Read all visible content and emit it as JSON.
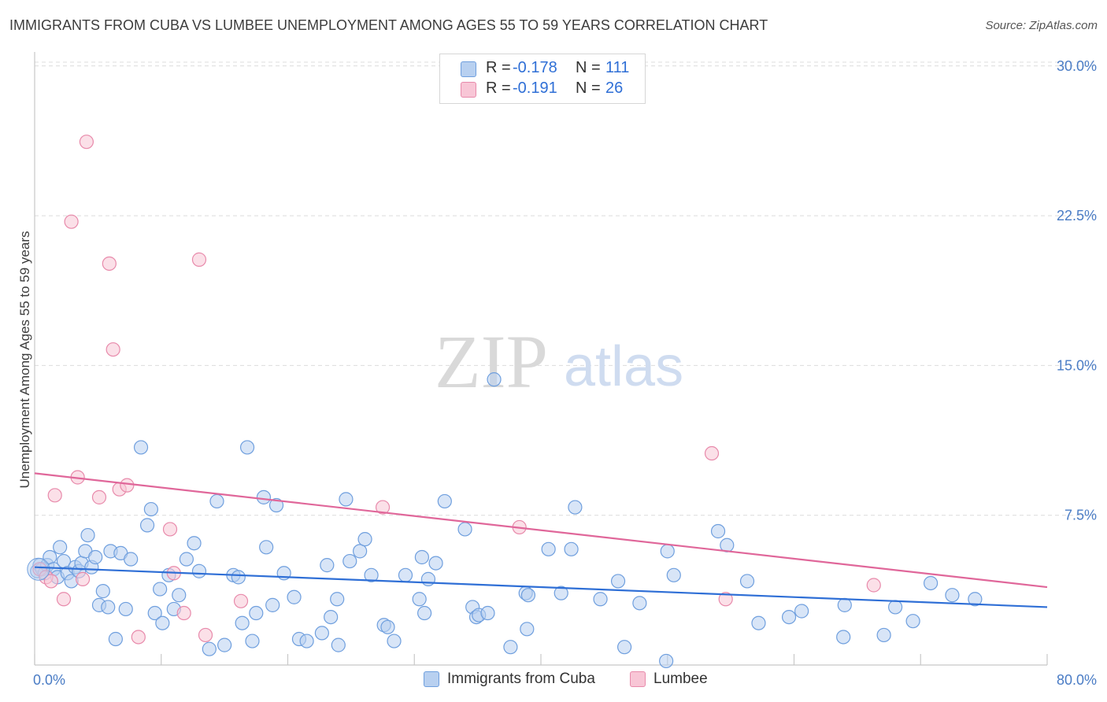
{
  "title": "IMMIGRANTS FROM CUBA VS LUMBEE UNEMPLOYMENT AMONG AGES 55 TO 59 YEARS CORRELATION CHART",
  "source": "Source: ZipAtlas.com",
  "watermark": {
    "zip": "ZIP",
    "atlas": "atlas"
  },
  "legend": {
    "rows": [
      {
        "r_label": "R =",
        "r_value": "-0.178",
        "n_label": "N =",
        "n_value": "111"
      },
      {
        "r_label": "R =",
        "r_value": "-0.191",
        "n_label": "N =",
        "n_value": "26"
      }
    ]
  },
  "bottom_legend": {
    "cuba": "Immigrants from Cuba",
    "lumbee": "Lumbee"
  },
  "colors": {
    "cuba_fill": "#b8d0f0",
    "cuba_stroke": "#6f9fde",
    "cuba_line": "#2f6fd6",
    "lumbee_fill": "#f8c6d6",
    "lumbee_stroke": "#e88aab",
    "lumbee_line": "#e0679a",
    "tick_text": "#4a7cc5",
    "grid": "#dcdcdc"
  },
  "chart_data": {
    "type": "scatter",
    "title": "IMMIGRANTS FROM CUBA VS LUMBEE UNEMPLOYMENT AMONG AGES 55 TO 59 YEARS CORRELATION CHART",
    "xlabel": "",
    "ylabel": "Unemployment Among Ages 55 to 59 years",
    "xlim": [
      0,
      80
    ],
    "ylim": [
      0,
      30.7
    ],
    "x_tick_labels": [
      "0.0%",
      "80.0%"
    ],
    "y_ticks": [
      7.5,
      15.0,
      22.5,
      30.0
    ],
    "y_tick_labels": [
      "7.5%",
      "15.0%",
      "22.5%",
      "30.0%"
    ],
    "grid": true,
    "legend_position": "top-center",
    "series": [
      {
        "name": "Immigrants from Cuba",
        "trend": {
          "x": [
            0,
            80
          ],
          "y": [
            4.9,
            2.9
          ]
        },
        "points": [
          [
            0.2,
            4.7
          ],
          [
            0.4,
            5.0
          ],
          [
            0.6,
            4.8
          ],
          [
            0.8,
            4.6
          ],
          [
            1.0,
            5.0
          ],
          [
            1.2,
            5.4
          ],
          [
            1.5,
            4.8
          ],
          [
            1.8,
            4.4
          ],
          [
            2.0,
            5.9
          ],
          [
            2.3,
            5.2
          ],
          [
            2.6,
            4.6
          ],
          [
            2.9,
            4.2
          ],
          [
            3.2,
            4.9
          ],
          [
            3.5,
            4.7
          ],
          [
            3.7,
            5.1
          ],
          [
            4.0,
            5.7
          ],
          [
            4.2,
            6.5
          ],
          [
            4.5,
            4.9
          ],
          [
            4.8,
            5.4
          ],
          [
            5.1,
            3.0
          ],
          [
            5.4,
            3.7
          ],
          [
            5.8,
            2.9
          ],
          [
            6.0,
            5.7
          ],
          [
            6.4,
            1.3
          ],
          [
            6.8,
            5.6
          ],
          [
            7.2,
            2.8
          ],
          [
            7.6,
            5.3
          ],
          [
            8.4,
            10.9
          ],
          [
            8.9,
            7.0
          ],
          [
            9.2,
            7.8
          ],
          [
            9.5,
            2.6
          ],
          [
            9.9,
            3.8
          ],
          [
            10.1,
            2.1
          ],
          [
            10.6,
            4.5
          ],
          [
            11.0,
            2.8
          ],
          [
            11.4,
            3.5
          ],
          [
            12.0,
            5.3
          ],
          [
            12.6,
            6.1
          ],
          [
            13.0,
            4.7
          ],
          [
            13.8,
            0.8
          ],
          [
            14.4,
            8.2
          ],
          [
            15.0,
            1.0
          ],
          [
            15.7,
            4.5
          ],
          [
            16.1,
            4.4
          ],
          [
            16.8,
            10.9
          ],
          [
            16.4,
            2.1
          ],
          [
            17.2,
            1.2
          ],
          [
            17.5,
            2.6
          ],
          [
            18.1,
            8.4
          ],
          [
            18.3,
            5.9
          ],
          [
            18.8,
            3.0
          ],
          [
            19.1,
            8.0
          ],
          [
            19.7,
            4.6
          ],
          [
            20.5,
            3.4
          ],
          [
            20.9,
            1.3
          ],
          [
            21.5,
            1.2
          ],
          [
            22.7,
            1.6
          ],
          [
            23.1,
            5.0
          ],
          [
            23.4,
            2.4
          ],
          [
            24.0,
            1.0
          ],
          [
            23.9,
            3.3
          ],
          [
            24.6,
            8.3
          ],
          [
            24.9,
            5.2
          ],
          [
            25.7,
            5.7
          ],
          [
            26.1,
            6.3
          ],
          [
            26.6,
            4.5
          ],
          [
            27.6,
            2.0
          ],
          [
            27.9,
            1.9
          ],
          [
            28.4,
            1.2
          ],
          [
            29.3,
            4.5
          ],
          [
            30.4,
            3.3
          ],
          [
            30.6,
            5.4
          ],
          [
            30.8,
            2.6
          ],
          [
            31.1,
            4.3
          ],
          [
            31.7,
            5.1
          ],
          [
            32.4,
            8.2
          ],
          [
            34.0,
            6.8
          ],
          [
            34.6,
            2.9
          ],
          [
            34.9,
            2.4
          ],
          [
            35.1,
            2.5
          ],
          [
            35.8,
            2.6
          ],
          [
            36.3,
            14.3
          ],
          [
            37.6,
            0.9
          ],
          [
            38.8,
            3.6
          ],
          [
            38.9,
            1.8
          ],
          [
            39.0,
            3.5
          ],
          [
            40.6,
            5.8
          ],
          [
            41.6,
            3.6
          ],
          [
            42.4,
            5.8
          ],
          [
            42.7,
            7.9
          ],
          [
            44.7,
            3.3
          ],
          [
            46.1,
            4.2
          ],
          [
            46.6,
            0.9
          ],
          [
            47.8,
            3.1
          ],
          [
            49.9,
            0.2
          ],
          [
            50.0,
            5.7
          ],
          [
            50.5,
            4.5
          ],
          [
            54.0,
            6.7
          ],
          [
            54.7,
            6.0
          ],
          [
            56.3,
            4.2
          ],
          [
            57.2,
            2.1
          ],
          [
            59.6,
            2.4
          ],
          [
            60.6,
            2.7
          ],
          [
            64.0,
            3.0
          ],
          [
            63.9,
            1.4
          ],
          [
            67.1,
            1.5
          ],
          [
            68.0,
            2.9
          ],
          [
            69.4,
            2.2
          ],
          [
            70.8,
            4.1
          ],
          [
            72.5,
            3.5
          ],
          [
            74.3,
            3.3
          ]
        ]
      },
      {
        "name": "Lumbee",
        "trend": {
          "x": [
            0,
            80
          ],
          "y": [
            9.6,
            3.9
          ]
        },
        "points": [
          [
            0.4,
            4.8
          ],
          [
            0.9,
            4.4
          ],
          [
            1.3,
            4.2
          ],
          [
            1.6,
            8.5
          ],
          [
            2.3,
            3.3
          ],
          [
            2.9,
            22.2
          ],
          [
            3.4,
            9.4
          ],
          [
            3.8,
            4.3
          ],
          [
            4.1,
            26.2
          ],
          [
            5.1,
            8.4
          ],
          [
            5.9,
            20.1
          ],
          [
            6.2,
            15.8
          ],
          [
            6.7,
            8.8
          ],
          [
            7.3,
            9.0
          ],
          [
            8.2,
            1.4
          ],
          [
            10.7,
            6.8
          ],
          [
            11.0,
            4.6
          ],
          [
            11.8,
            2.6
          ],
          [
            13.0,
            20.3
          ],
          [
            13.5,
            1.5
          ],
          [
            16.3,
            3.2
          ],
          [
            27.5,
            7.9
          ],
          [
            38.3,
            6.9
          ],
          [
            53.5,
            10.6
          ],
          [
            54.6,
            3.3
          ],
          [
            66.3,
            4.0
          ]
        ]
      }
    ]
  }
}
